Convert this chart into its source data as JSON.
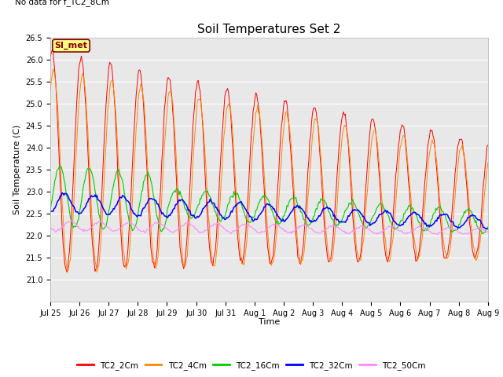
{
  "title": "Soil Temperatures Set 2",
  "top_left_note": "No data for f_TC2_8Cm",
  "ylabel": "Soil Temperature (C)",
  "xlabel": "Time",
  "ylim": [
    20.5,
    26.5
  ],
  "yticks": [
    21.0,
    21.5,
    22.0,
    22.5,
    23.0,
    23.5,
    24.0,
    24.5,
    25.0,
    25.5,
    26.0,
    26.5
  ],
  "xtick_labels": [
    "Jul 25",
    "Jul 26",
    "Jul 27",
    "Jul 28",
    "Jul 29",
    "Jul 30",
    "Jul 31",
    "Aug 1",
    "Aug 2",
    "Aug 3",
    "Aug 4",
    "Aug 5",
    "Aug 6",
    "Aug 7",
    "Aug 8",
    "Aug 9"
  ],
  "series_colors": {
    "TC2_2Cm": "#ff0000",
    "TC2_4Cm": "#ff8800",
    "TC2_16Cm": "#00cc00",
    "TC2_32Cm": "#0000ff",
    "TC2_50Cm": "#ff88ff"
  },
  "legend_box_label": "SI_met",
  "legend_box_bg": "#ffff88",
  "legend_box_edge": "#880000",
  "plot_bg": "#e8e8e8",
  "fig_bg": "#ffffff",
  "title_fontsize": 11,
  "axis_label_fontsize": 8,
  "tick_fontsize": 7,
  "note_fontsize": 7.5,
  "n_points": 480,
  "duration_days": 15
}
